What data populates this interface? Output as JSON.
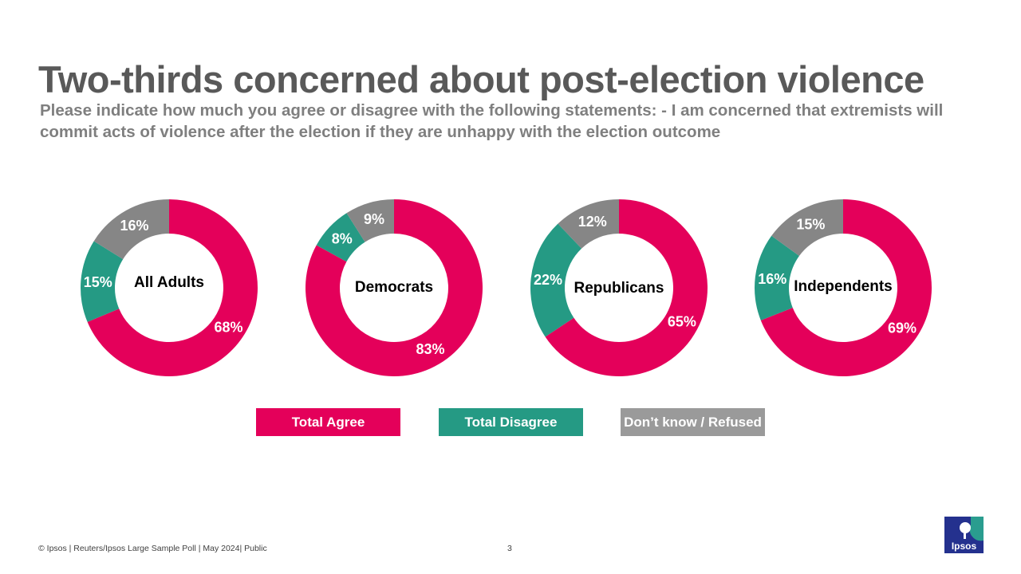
{
  "title": "Two-thirds concerned about post-election violence",
  "subtitle": "Please indicate how much you agree or disagree with the following statements:  - I am concerned that extremists will commit acts of violence after the election if they are unhappy with the election outcome",
  "chart_data": {
    "type": "pie",
    "style": "donut",
    "series_names": [
      "Total Agree",
      "Total Disagree",
      "Don’t know / Refused"
    ],
    "colors": [
      "#e4005a",
      "#259a84",
      "#868686"
    ],
    "charts": [
      {
        "name": "All Adults",
        "values": [
          68,
          15,
          16
        ],
        "labels": [
          "68%",
          "15%",
          "16%"
        ]
      },
      {
        "name": "Democrats",
        "values": [
          83,
          8,
          9
        ],
        "labels": [
          "83%",
          "8%",
          "9%"
        ]
      },
      {
        "name": "Republicans",
        "values": [
          65,
          22,
          12
        ],
        "labels": [
          "65%",
          "22%",
          "12%"
        ]
      },
      {
        "name": "Independents",
        "values": [
          69,
          16,
          15
        ],
        "labels": [
          "69%",
          "16%",
          "15%"
        ]
      }
    ]
  },
  "legend": {
    "agree": "Total Agree",
    "disagree": "Total Disagree",
    "dk": "Don’t know / Refused"
  },
  "footer": {
    "source": "© Ipsos | Reuters/Ipsos Large Sample Poll | May 2024| Public",
    "page": "3",
    "logo": "Ipsos"
  }
}
